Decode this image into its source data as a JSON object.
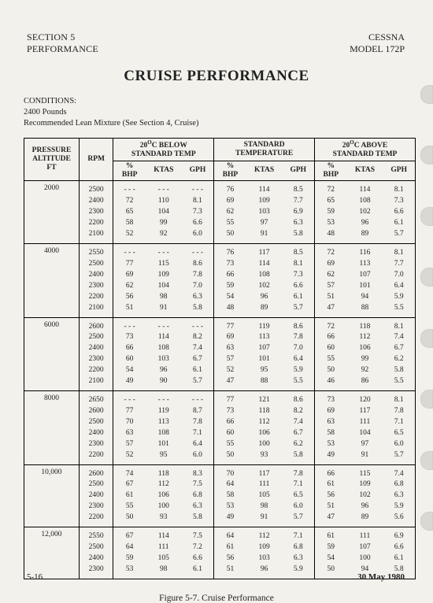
{
  "header": {
    "section": "SECTION 5",
    "subsection": "PERFORMANCE",
    "make": "CESSNA",
    "model": "MODEL 172P"
  },
  "title": "CRUISE PERFORMANCE",
  "conditions": {
    "label": "CONDITIONS:",
    "line1": "2400 Pounds",
    "line2": "Recommended Lean Mixture (See Section 4, Cruise)"
  },
  "table": {
    "col_alt": "PRESSURE ALTITUDE FT",
    "col_rpm": "RPM",
    "group_below": "20°C BELOW STANDARD TEMP",
    "group_std": "STANDARD TEMPERATURE",
    "group_above": "20°C ABOVE STANDARD TEMP",
    "sub_bhp": "% BHP",
    "sub_ktas": "KTAS",
    "sub_gph": "GPH",
    "blocks": [
      {
        "alt": "2000",
        "rows": [
          {
            "rpm": "2500",
            "b": [
              "- - -",
              "- - -",
              "- - -"
            ],
            "s": [
              "76",
              "114",
              "8.5"
            ],
            "a": [
              "72",
              "114",
              "8.1"
            ]
          },
          {
            "rpm": "2400",
            "b": [
              "72",
              "110",
              "8.1"
            ],
            "s": [
              "69",
              "109",
              "7.7"
            ],
            "a": [
              "65",
              "108",
              "7.3"
            ]
          },
          {
            "rpm": "2300",
            "b": [
              "65",
              "104",
              "7.3"
            ],
            "s": [
              "62",
              "103",
              "6.9"
            ],
            "a": [
              "59",
              "102",
              "6.6"
            ]
          },
          {
            "rpm": "2200",
            "b": [
              "58",
              "99",
              "6.6"
            ],
            "s": [
              "55",
              "97",
              "6.3"
            ],
            "a": [
              "53",
              "96",
              "6.1"
            ]
          },
          {
            "rpm": "2100",
            "b": [
              "52",
              "92",
              "6.0"
            ],
            "s": [
              "50",
              "91",
              "5.8"
            ],
            "a": [
              "48",
              "89",
              "5.7"
            ]
          }
        ]
      },
      {
        "alt": "4000",
        "rows": [
          {
            "rpm": "2550",
            "b": [
              "- - -",
              "- - -",
              "- - -"
            ],
            "s": [
              "76",
              "117",
              "8.5"
            ],
            "a": [
              "72",
              "116",
              "8.1"
            ]
          },
          {
            "rpm": "2500",
            "b": [
              "77",
              "115",
              "8.6"
            ],
            "s": [
              "73",
              "114",
              "8.1"
            ],
            "a": [
              "69",
              "113",
              "7.7"
            ]
          },
          {
            "rpm": "2400",
            "b": [
              "69",
              "109",
              "7.8"
            ],
            "s": [
              "66",
              "108",
              "7.3"
            ],
            "a": [
              "62",
              "107",
              "7.0"
            ]
          },
          {
            "rpm": "2300",
            "b": [
              "62",
              "104",
              "7.0"
            ],
            "s": [
              "59",
              "102",
              "6.6"
            ],
            "a": [
              "57",
              "101",
              "6.4"
            ]
          },
          {
            "rpm": "2200",
            "b": [
              "56",
              "98",
              "6.3"
            ],
            "s": [
              "54",
              "96",
              "6.1"
            ],
            "a": [
              "51",
              "94",
              "5.9"
            ]
          },
          {
            "rpm": "2100",
            "b": [
              "51",
              "91",
              "5.8"
            ],
            "s": [
              "48",
              "89",
              "5.7"
            ],
            "a": [
              "47",
              "88",
              "5.5"
            ]
          }
        ]
      },
      {
        "alt": "6000",
        "rows": [
          {
            "rpm": "2600",
            "b": [
              "- - -",
              "- - -",
              "- - -"
            ],
            "s": [
              "77",
              "119",
              "8.6"
            ],
            "a": [
              "72",
              "118",
              "8.1"
            ]
          },
          {
            "rpm": "2500",
            "b": [
              "73",
              "114",
              "8.2"
            ],
            "s": [
              "69",
              "113",
              "7.8"
            ],
            "a": [
              "66",
              "112",
              "7.4"
            ]
          },
          {
            "rpm": "2400",
            "b": [
              "66",
              "108",
              "7.4"
            ],
            "s": [
              "63",
              "107",
              "7.0"
            ],
            "a": [
              "60",
              "106",
              "6.7"
            ]
          },
          {
            "rpm": "2300",
            "b": [
              "60",
              "103",
              "6.7"
            ],
            "s": [
              "57",
              "101",
              "6.4"
            ],
            "a": [
              "55",
              "99",
              "6.2"
            ]
          },
          {
            "rpm": "2200",
            "b": [
              "54",
              "96",
              "6.1"
            ],
            "s": [
              "52",
              "95",
              "5.9"
            ],
            "a": [
              "50",
              "92",
              "5.8"
            ]
          },
          {
            "rpm": "2100",
            "b": [
              "49",
              "90",
              "5.7"
            ],
            "s": [
              "47",
              "88",
              "5.5"
            ],
            "a": [
              "46",
              "86",
              "5.5"
            ]
          }
        ]
      },
      {
        "alt": "8000",
        "rows": [
          {
            "rpm": "2650",
            "b": [
              "- - -",
              "- - -",
              "- - -"
            ],
            "s": [
              "77",
              "121",
              "8.6"
            ],
            "a": [
              "73",
              "120",
              "8.1"
            ]
          },
          {
            "rpm": "2600",
            "b": [
              "77",
              "119",
              "8.7"
            ],
            "s": [
              "73",
              "118",
              "8.2"
            ],
            "a": [
              "69",
              "117",
              "7.8"
            ]
          },
          {
            "rpm": "2500",
            "b": [
              "70",
              "113",
              "7.8"
            ],
            "s": [
              "66",
              "112",
              "7.4"
            ],
            "a": [
              "63",
              "111",
              "7.1"
            ]
          },
          {
            "rpm": "2400",
            "b": [
              "63",
              "108",
              "7.1"
            ],
            "s": [
              "60",
              "106",
              "6.7"
            ],
            "a": [
              "58",
              "104",
              "6.5"
            ]
          },
          {
            "rpm": "2300",
            "b": [
              "57",
              "101",
              "6.4"
            ],
            "s": [
              "55",
              "100",
              "6.2"
            ],
            "a": [
              "53",
              "97",
              "6.0"
            ]
          },
          {
            "rpm": "2200",
            "b": [
              "52",
              "95",
              "6.0"
            ],
            "s": [
              "50",
              "93",
              "5.8"
            ],
            "a": [
              "49",
              "91",
              "5.7"
            ]
          }
        ]
      },
      {
        "alt": "10,000",
        "rows": [
          {
            "rpm": "2600",
            "b": [
              "74",
              "118",
              "8.3"
            ],
            "s": [
              "70",
              "117",
              "7.8"
            ],
            "a": [
              "66",
              "115",
              "7.4"
            ]
          },
          {
            "rpm": "2500",
            "b": [
              "67",
              "112",
              "7.5"
            ],
            "s": [
              "64",
              "111",
              "7.1"
            ],
            "a": [
              "61",
              "109",
              "6.8"
            ]
          },
          {
            "rpm": "2400",
            "b": [
              "61",
              "106",
              "6.8"
            ],
            "s": [
              "58",
              "105",
              "6.5"
            ],
            "a": [
              "56",
              "102",
              "6.3"
            ]
          },
          {
            "rpm": "2300",
            "b": [
              "55",
              "100",
              "6.3"
            ],
            "s": [
              "53",
              "98",
              "6.0"
            ],
            "a": [
              "51",
              "96",
              "5.9"
            ]
          },
          {
            "rpm": "2200",
            "b": [
              "50",
              "93",
              "5.8"
            ],
            "s": [
              "49",
              "91",
              "5.7"
            ],
            "a": [
              "47",
              "89",
              "5.6"
            ]
          }
        ]
      },
      {
        "alt": "12,000",
        "rows": [
          {
            "rpm": "2550",
            "b": [
              "67",
              "114",
              "7.5"
            ],
            "s": [
              "64",
              "112",
              "7.1"
            ],
            "a": [
              "61",
              "111",
              "6.9"
            ]
          },
          {
            "rpm": "2500",
            "b": [
              "64",
              "111",
              "7.2"
            ],
            "s": [
              "61",
              "109",
              "6.8"
            ],
            "a": [
              "59",
              "107",
              "6.6"
            ]
          },
          {
            "rpm": "2400",
            "b": [
              "59",
              "105",
              "6.6"
            ],
            "s": [
              "56",
              "103",
              "6.3"
            ],
            "a": [
              "54",
              "100",
              "6.1"
            ]
          },
          {
            "rpm": "2300",
            "b": [
              "53",
              "98",
              "6.1"
            ],
            "s": [
              "51",
              "96",
              "5.9"
            ],
            "a": [
              "50",
              "94",
              "5.8"
            ]
          }
        ]
      }
    ]
  },
  "caption": "Figure 5-7.   Cruise Performance",
  "footer": {
    "page": "5-16",
    "date": "30 May 1980"
  },
  "notch_tops": [
    108,
    185,
    263,
    340,
    418,
    495,
    573,
    650
  ]
}
